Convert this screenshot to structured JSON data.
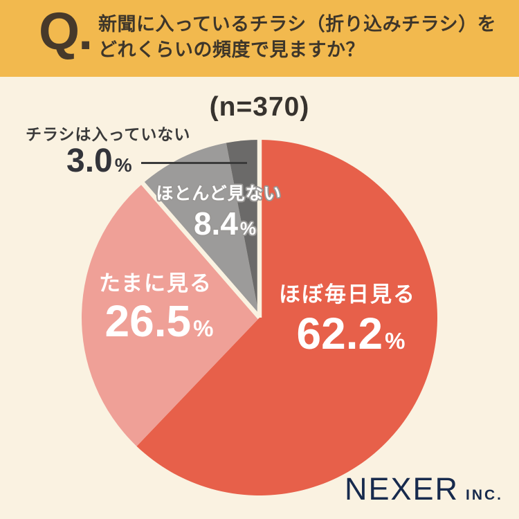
{
  "header": {
    "q_mark": "Q.",
    "question_line1": "新聞に入っているチラシ（折り込みチラシ）を",
    "question_line2": "どれくらいの頻度で見ますか？",
    "banner_color": "#f2b94e",
    "text_color": "#3e362a"
  },
  "chart_data": {
    "type": "pie",
    "title": "(n=370)",
    "sample_size": 370,
    "start_angle_deg": 0,
    "direction": "clockwise",
    "legend": "none",
    "percent_sign": "%",
    "background_color": "#faf2e1",
    "gap_color": "#faf2e1",
    "gap_after_indices": [
      1,
      3
    ],
    "slices": [
      {
        "label": "ほぼ毎日見る",
        "value": 62.2,
        "value_label": "62.2",
        "color": "#e7604a",
        "text_color": "#ffffff",
        "label_placement": "inside"
      },
      {
        "label": "たまに見る",
        "value": 26.5,
        "value_label": "26.5",
        "color": "#efa097",
        "text_color": "#ffffff",
        "label_placement": "inside"
      },
      {
        "label": "ほとんど見ない",
        "value": 8.4,
        "value_label": "8.4",
        "color": "#9c9b9a",
        "text_color": "#ffffff",
        "label_placement": "inside-halo"
      },
      {
        "label": "チラシは入っていない",
        "value": 3.0,
        "value_label": "3.0",
        "color": "#6b6a69",
        "text_color": "#3a3a3a",
        "label_placement": "outside-leader-line"
      }
    ]
  },
  "footer": {
    "brand": "NEXER",
    "suffix": "INC.",
    "color": "#172a4d"
  }
}
